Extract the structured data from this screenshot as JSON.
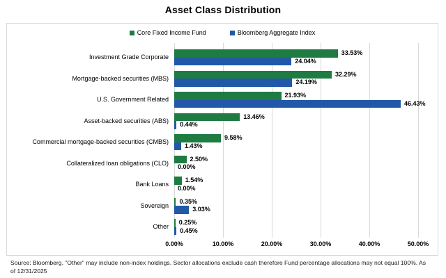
{
  "title": "Asset Class Distribution",
  "footer": "Source: Bloomberg. \"Other\" may include non-index holdings. Sector allocations exclude cash therefore Fund percentage allocations may not equal 100%. As of 12/31/2025",
  "colors": {
    "fund_green": "#1E7B42",
    "index_blue": "#2158A8",
    "gridline_gray": "#D9D9D9"
  },
  "chart_data": {
    "type": "bar",
    "orientation": "horizontal",
    "title": "Asset Class Distribution",
    "categories": [
      "Investment Grade Corporate",
      "Mortgage-backed securities (MBS)",
      "U.S. Government Related",
      "Asset-backed securities (ABS)",
      "Commercial mortgage-backed securities (CMBS)",
      "Collateralized loan obligations (CLO)",
      "Bank Loans",
      "Sovereign",
      "Other"
    ],
    "series": [
      {
        "name": "Core Fixed Income Fund",
        "color": "#1E7B42",
        "values": [
          33.53,
          32.29,
          21.93,
          13.46,
          9.58,
          2.5,
          1.54,
          0.35,
          0.25
        ]
      },
      {
        "name": "Bloomberg Aggregate Index",
        "color": "#2158A8",
        "values": [
          24.04,
          24.19,
          46.43,
          0.44,
          1.43,
          0.0,
          0.0,
          3.03,
          0.45
        ]
      }
    ],
    "value_label_format": "0.00%",
    "xlim": [
      0,
      50
    ],
    "x_ticks": [
      "0.00%",
      "10.00%",
      "20.00%",
      "30.00%",
      "40.00%",
      "50.00%"
    ],
    "grid": true,
    "legend_position": "top"
  }
}
